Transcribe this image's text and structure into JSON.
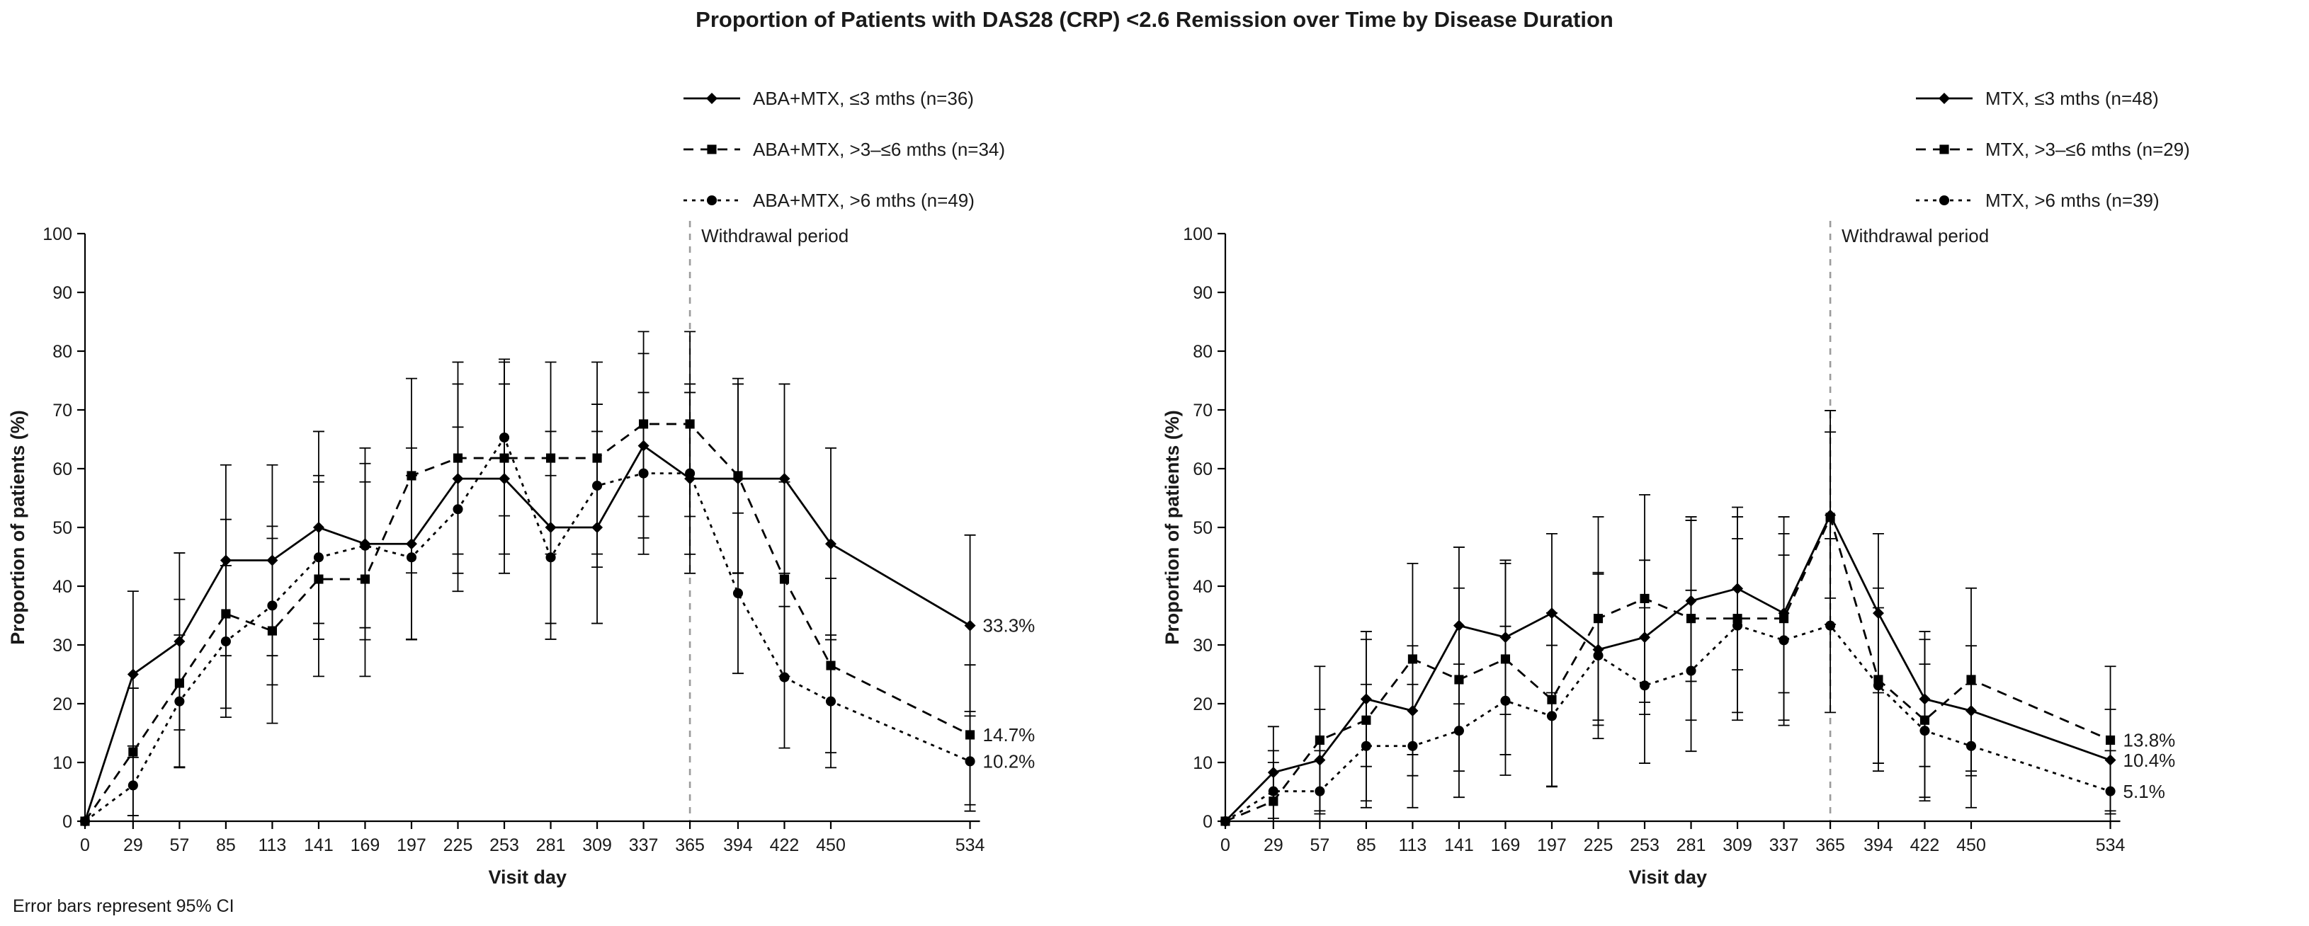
{
  "page": {
    "title": "Proportion of Patients with DAS28 (CRP) <2.6 Remission over Time by Disease Duration",
    "footnote": "Error bars represent 95% CI"
  },
  "colors": {
    "series": "#000000",
    "withdrawal_line": "#9b9b9b",
    "text": "#1a1a1a"
  },
  "chart_data": [
    {
      "type": "line",
      "panel": "left",
      "title": "",
      "xlabel": "Visit day",
      "ylabel": "Proportion of patients (%)",
      "ylim": [
        0,
        100
      ],
      "yticks": [
        0,
        10,
        20,
        30,
        40,
        50,
        60,
        70,
        80,
        90,
        100
      ],
      "grid": false,
      "legend_position": "top",
      "error_bars": "95% CI",
      "x": [
        0,
        29,
        57,
        85,
        113,
        141,
        169,
        197,
        225,
        253,
        281,
        309,
        337,
        365,
        394,
        422,
        450,
        534
      ],
      "withdrawal_line": {
        "x": 365,
        "label": "Withdrawal period"
      },
      "series": [
        {
          "name": "ABA+MTX, ≤3 mths (n=36)",
          "n": 36,
          "marker": "diamond",
          "line": "solid",
          "end_label": "33.3%",
          "values": [
            0,
            25.0,
            30.6,
            44.4,
            44.4,
            50.0,
            47.2,
            47.2,
            58.3,
            58.3,
            50.0,
            50.0,
            63.9,
            58.3,
            58.3,
            58.3,
            47.2,
            33.3
          ]
        },
        {
          "name": "ABA+MTX, >3–≤6 mths (n=34)",
          "n": 34,
          "marker": "square",
          "line": "dashed",
          "end_label": "14.7%",
          "values": [
            0,
            11.8,
            23.5,
            35.3,
            32.4,
            41.2,
            41.2,
            58.8,
            61.8,
            61.8,
            61.8,
            61.8,
            67.6,
            67.6,
            58.8,
            41.2,
            26.5,
            14.7
          ]
        },
        {
          "name": "ABA+MTX, >6 mths (n=49)",
          "n": 49,
          "marker": "circle",
          "line": "short-dash",
          "end_label": "10.2%",
          "values": [
            0,
            6.1,
            20.4,
            30.6,
            36.7,
            44.9,
            46.9,
            44.9,
            53.1,
            65.3,
            44.9,
            57.1,
            59.2,
            59.2,
            38.8,
            24.5,
            20.4,
            10.2
          ]
        }
      ]
    },
    {
      "type": "line",
      "panel": "right",
      "title": "",
      "xlabel": "Visit day",
      "ylabel": "Proportion of patients (%)",
      "ylim": [
        0,
        100
      ],
      "yticks": [
        0,
        10,
        20,
        30,
        40,
        50,
        60,
        70,
        80,
        90,
        100
      ],
      "grid": false,
      "legend_position": "top",
      "error_bars": "95% CI",
      "x": [
        0,
        29,
        57,
        85,
        113,
        141,
        169,
        197,
        225,
        253,
        281,
        309,
        337,
        365,
        394,
        422,
        450,
        534
      ],
      "withdrawal_line": {
        "x": 365,
        "label": "Withdrawal period"
      },
      "series": [
        {
          "name": "MTX, ≤3 mths (n=48)",
          "n": 48,
          "marker": "diamond",
          "line": "solid",
          "end_label": "10.4%",
          "values": [
            0,
            8.3,
            10.4,
            20.8,
            18.8,
            33.3,
            31.3,
            35.4,
            29.2,
            31.3,
            37.5,
            39.6,
            35.4,
            52.1,
            35.4,
            20.8,
            18.8,
            10.4
          ]
        },
        {
          "name": "MTX, >3–≤6 mths (n=29)",
          "n": 29,
          "marker": "square",
          "line": "dashed",
          "end_label": "13.8%",
          "values": [
            0,
            3.4,
            13.8,
            17.2,
            27.6,
            24.1,
            27.6,
            20.7,
            34.5,
            37.9,
            34.5,
            34.5,
            34.5,
            51.7,
            24.1,
            17.2,
            24.1,
            13.8
          ]
        },
        {
          "name": "MTX, >6 mths (n=39)",
          "n": 39,
          "marker": "circle",
          "line": "short-dash",
          "end_label": "5.1%",
          "values": [
            0,
            5.1,
            5.1,
            12.8,
            12.8,
            15.4,
            20.5,
            17.9,
            28.2,
            23.1,
            25.6,
            33.3,
            30.8,
            33.3,
            23.1,
            15.4,
            12.8,
            5.1
          ]
        }
      ]
    }
  ]
}
